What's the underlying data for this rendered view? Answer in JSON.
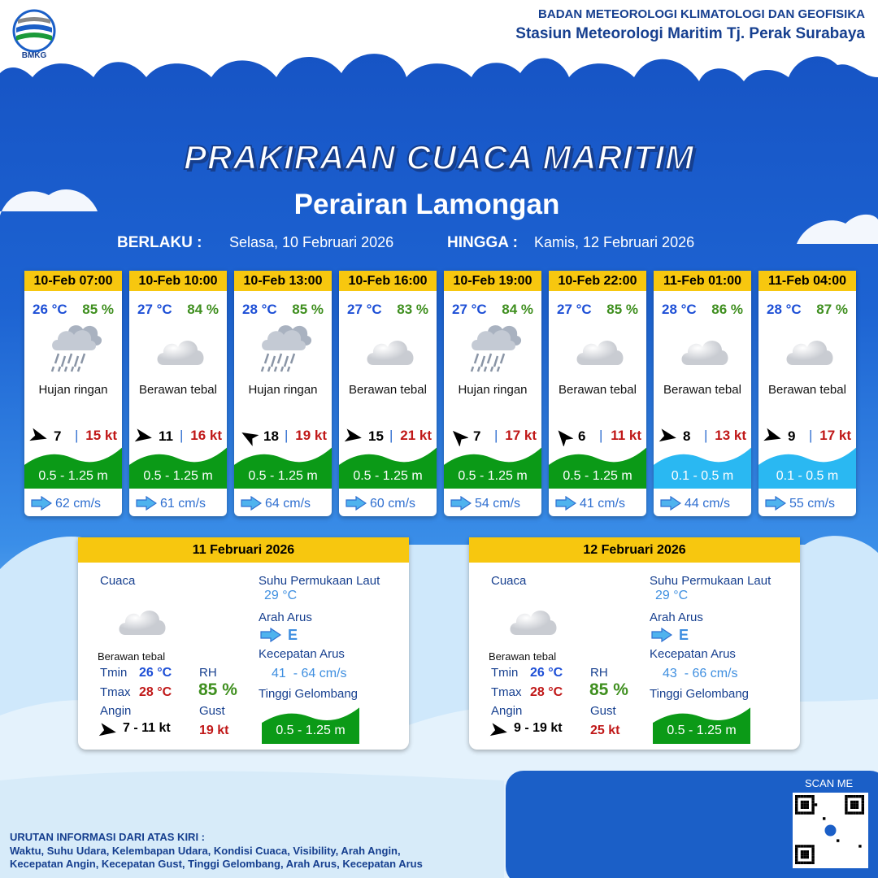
{
  "header": {
    "logo_text": "BMKG",
    "agency": "BADAN METEOROLOGI KLIMATOLOGI DAN GEOFISIKA",
    "station": "Stasiun Meteorologi Maritim Tj. Perak Surabaya"
  },
  "title": "PRAKIRAAN CUACA MARITIM",
  "subtitle": "Perairan Lamongan",
  "validity": {
    "from_label": "BERLAKU :",
    "from": "Selasa, 10 Februari 2026",
    "to_label": "HINGGA :",
    "to": "Kamis, 12 Februari 2026"
  },
  "forecasts": [
    {
      "time": "10-Feb 07:00",
      "temp": "26 °C",
      "rh": "85 %",
      "icon": "rain",
      "weather": "Hujan ringan",
      "wind": "7",
      "gust": "15 kt",
      "wave": "0.5 - 1.25 m",
      "wave_color": "#0b9a17",
      "current": "62 cm/s"
    },
    {
      "time": "10-Feb 10:00",
      "temp": "27 °C",
      "rh": "84 %",
      "icon": "cloud",
      "weather": "Berawan tebal",
      "wind": "11",
      "gust": "16 kt",
      "wave": "0.5 - 1.25 m",
      "wave_color": "#0b9a17",
      "current": "61 cm/s"
    },
    {
      "time": "10-Feb 13:00",
      "temp": "28 °C",
      "rh": "85 %",
      "icon": "rain",
      "weather": "Hujan ringan",
      "wind": "18",
      "gust": "19 kt",
      "wave": "0.5 - 1.25 m",
      "wave_color": "#0b9a17",
      "current": "64 cm/s"
    },
    {
      "time": "10-Feb 16:00",
      "temp": "27 °C",
      "rh": "83 %",
      "icon": "cloud",
      "weather": "Berawan tebal",
      "wind": "15",
      "gust": "21 kt",
      "wave": "0.5 - 1.25 m",
      "wave_color": "#0b9a17",
      "current": "60 cm/s"
    },
    {
      "time": "10-Feb 19:00",
      "temp": "27 °C",
      "rh": "84 %",
      "icon": "rain",
      "weather": "Hujan ringan",
      "wind": "7",
      "gust": "17 kt",
      "wave": "0.5 - 1.25 m",
      "wave_color": "#0b9a17",
      "current": "54 cm/s"
    },
    {
      "time": "10-Feb 22:00",
      "temp": "27 °C",
      "rh": "85 %",
      "icon": "cloud",
      "weather": "Berawan tebal",
      "wind": "6",
      "gust": "11 kt",
      "wave": "0.5 - 1.25 m",
      "wave_color": "#0b9a17",
      "current": "41 cm/s"
    },
    {
      "time": "11-Feb 01:00",
      "temp": "28 °C",
      "rh": "86 %",
      "icon": "cloud",
      "weather": "Berawan tebal",
      "wind": "8",
      "gust": "13 kt",
      "wave": "0.1 - 0.5 m",
      "wave_color": "#2ab8f2",
      "current": "44 cm/s"
    },
    {
      "time": "11-Feb 04:00",
      "temp": "28 °C",
      "rh": "87 %",
      "icon": "cloud",
      "weather": "Berawan tebal",
      "wind": "9",
      "gust": "17 kt",
      "wave": "0.1 - 0.5 m",
      "wave_color": "#2ab8f2",
      "current": "55 cm/s"
    }
  ],
  "summary_labels": {
    "weather": "Cuaca",
    "tmin": "Tmin",
    "tmax": "Tmax",
    "wind": "Angin",
    "rh": "RH",
    "gust": "Gust",
    "sst": "Suhu Permukaan Laut",
    "current_dir": "Arah Arus",
    "current_speed": "Kecepatan Arus",
    "wave": "Tinggi Gelombang"
  },
  "summaries": [
    {
      "date": "11 Februari 2026",
      "weather": "Berawan tebal",
      "tmin": "26 °C",
      "tmax": "28 °C",
      "wind": "7 - 11 kt",
      "rh": "85 %",
      "gust": "19 kt",
      "sst": "29 °C",
      "current_dir": "E",
      "current_speed": "41  - 64 cm/s",
      "wave": "0.5 - 1.25 m",
      "wave_color": "#0b9a17"
    },
    {
      "date": "12 Februari 2026",
      "weather": "Berawan tebal",
      "tmin": "26 °C",
      "tmax": "28 °C",
      "wind": "9 - 19 kt",
      "rh": "85 %",
      "gust": "25 kt",
      "sst": "29 °C",
      "current_dir": "E",
      "current_speed": "43  - 66 cm/s",
      "wave": "0.5 - 1.25 m",
      "wave_color": "#0b9a17"
    }
  ],
  "footer": {
    "scan": "SCAN ME",
    "note_title": "URUTAN INFORMASI DARI ATAS KIRI :",
    "note_lines": [
      "Waktu, Suhu Udara, Kelembapan Udara, Kondisi Cuaca, Visibility, Arah Angin,",
      "Kecepatan Angin, Kecepatan Gust, Tinggi Gelombang, Arah Arus, Kecepatan Arus"
    ]
  }
}
